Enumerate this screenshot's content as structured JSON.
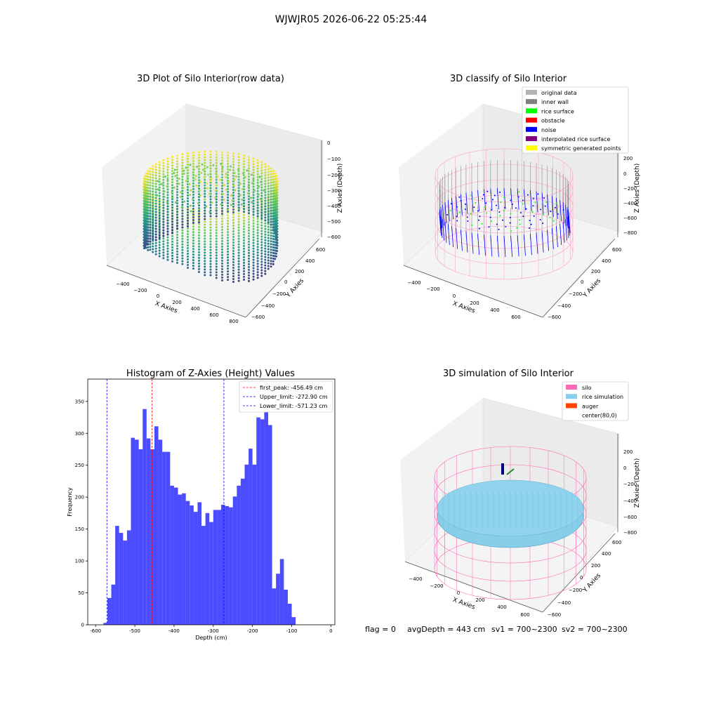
{
  "figure": {
    "suptitle": "WJWJR05 2026-06-22 05:25:44",
    "footer": {
      "flag": "flag = 0",
      "avg_depth": "avgDepth = 443 cm",
      "sv1": "sv1 = 700~2300",
      "sv2": "sv2 = 700~2300"
    }
  },
  "panels": {
    "raw": {
      "title": "3D Plot of Silo Interior(row data)",
      "xlabel": "X Axies",
      "ylabel": "Y Axies",
      "zlabel": "Z Axies (Depth)",
      "xticks": [
        "−400",
        "−200",
        "0",
        "200",
        "400",
        "600",
        "800"
      ],
      "yticks": [
        "−600",
        "−400",
        "−200",
        "0",
        "200",
        "400",
        "600"
      ],
      "zticks": [
        "0",
        "−100",
        "−200",
        "−300",
        "−400",
        "−500",
        "−600"
      ]
    },
    "classify": {
      "title": "3D classify of Silo Interior",
      "xlabel": "X Axies",
      "ylabel": "Y Axies",
      "zlabel": "Z Axies (Depth)",
      "xticks": [
        "−400",
        "−200",
        "0",
        "200",
        "400",
        "600"
      ],
      "yticks": [
        "−600",
        "−400",
        "−200",
        "0",
        "200",
        "400",
        "600"
      ],
      "zticks": [
        "200",
        "0",
        "−200",
        "−400",
        "−600",
        "−800"
      ],
      "legend": [
        {
          "label": "original data",
          "color": "#b3b3b3"
        },
        {
          "label": "inner wall",
          "color": "#808080"
        },
        {
          "label": "rice surface",
          "color": "#00ff00"
        },
        {
          "label": "obstacle",
          "color": "#ff0000"
        },
        {
          "label": "noise",
          "color": "#0000ff"
        },
        {
          "label": "interpolated rice surface",
          "color": "#800080"
        },
        {
          "label": "symmetric generated points",
          "color": "#ffff00"
        }
      ]
    },
    "simulation": {
      "title": "3D simulation of Silo Interior",
      "xlabel": "X Axies",
      "ylabel": "Y Axies",
      "zlabel": "Z Axies (Depth)",
      "xticks": [
        "−400",
        "−200",
        "0",
        "200",
        "400",
        "600"
      ],
      "yticks": [
        "−600",
        "−400",
        "−200",
        "0",
        "200",
        "400",
        "600"
      ],
      "zticks": [
        "200",
        "0",
        "−200",
        "−400",
        "−600",
        "−800"
      ],
      "legend": [
        {
          "label": "silo",
          "color": "#ff69b4"
        },
        {
          "label": "rice simulation",
          "color": "#87ceeb"
        },
        {
          "label": "auger",
          "color": "#ff4500"
        },
        {
          "label": "center(80,0)",
          "color": ""
        }
      ]
    }
  },
  "chart_data": {
    "type": "bar",
    "title": "Histogram of Z-Axies (Height) Values",
    "xlabel": "Depth (cm)",
    "ylabel": "Frequency",
    "xlim": [
      -620,
      10
    ],
    "ylim": [
      0,
      385
    ],
    "xticks": [
      -600,
      -500,
      -400,
      -300,
      -200,
      -100,
      0
    ],
    "yticks": [
      0,
      50,
      100,
      150,
      200,
      250,
      300,
      350
    ],
    "bar_color": "#0000ff",
    "bins_start": -580,
    "bin_width": 10,
    "values": [
      3,
      42,
      63,
      155,
      144,
      132,
      148,
      293,
      290,
      275,
      338,
      292,
      275,
      311,
      290,
      271,
      271,
      218,
      215,
      204,
      206,
      194,
      187,
      177,
      192,
      155,
      175,
      161,
      180,
      180,
      188,
      186,
      184,
      201,
      218,
      229,
      251,
      276,
      251,
      325,
      322,
      365,
      313,
      57,
      80,
      103,
      55,
      33,
      12
    ],
    "vlines": [
      {
        "name": "first_peak: -456.49 cm",
        "x": -456.49,
        "color": "#ff0000"
      },
      {
        "name": "Upper_limit: -272.90 cm",
        "x": -272.9,
        "color": "#0000ff"
      },
      {
        "name": "Lower_limit: -571.23 cm",
        "x": -571.23,
        "color": "#0000ff"
      }
    ]
  }
}
